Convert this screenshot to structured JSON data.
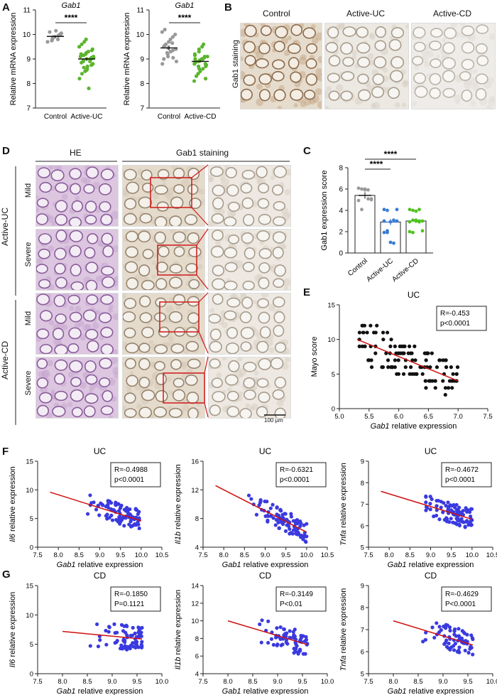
{
  "panels": {
    "A": "A",
    "B": "B",
    "C": "C",
    "D": "D",
    "E": "E",
    "F": "F",
    "G": "G"
  },
  "panelA": {
    "left": {
      "title": "Gab1",
      "ylabel": "Relative mRNA expression",
      "yticks": [
        "7",
        "8",
        "9",
        "10",
        "11"
      ],
      "categories": [
        "Control",
        "Active-UC"
      ],
      "significance": "****"
    },
    "right": {
      "title": "Gab1",
      "ylabel": "Relative mRNA expression",
      "yticks": [
        "7",
        "8",
        "9",
        "10",
        "11"
      ],
      "categories": [
        "Control",
        "Active-CD"
      ],
      "significance": "****"
    }
  },
  "panelB": {
    "ylabel": "Gab1 staining",
    "columns": [
      "Control",
      "Active-UC",
      "Active-CD"
    ],
    "scalebar": "100 μm"
  },
  "panelC": {
    "ylabel": "Gab1 expression score",
    "yticks": [
      "0",
      "2",
      "4",
      "6",
      "8"
    ],
    "categories": [
      "Control",
      "Active-UC",
      "Active-CD"
    ],
    "significance": [
      "****",
      "****"
    ]
  },
  "panelD": {
    "col_he": "HE",
    "col_gab1": "Gab1 staining",
    "group_uc": "Active-UC",
    "group_cd": "Active-CD",
    "row_mild": "Mild",
    "row_severe": "Severe",
    "scalebar": "100 μm"
  },
  "panelE": {
    "title": "UC",
    "ylabel": "Mayo score",
    "xlabel": "Gab1 relative expression",
    "stat_r": "R=-0.453",
    "stat_p": "p<0.0001"
  },
  "scatter_titles": {
    "F1": "UC",
    "F2": "UC",
    "F3": "UC",
    "G1": "CD",
    "G2": "CD",
    "G3": "CD"
  },
  "scatter_stats": {
    "F1": {
      "r": "R=-0.4988",
      "p": "p<0.0001"
    },
    "F2": {
      "r": "R=-0.6321",
      "p": "p<0.0001"
    },
    "F3": {
      "r": "R=-0.4672",
      "p": "p<0.0001"
    },
    "G1": {
      "r": "R=-0.1850",
      "p": "P=0.1121"
    },
    "G2": {
      "r": "R=-0.3149",
      "p": "P<0.01"
    },
    "G3": {
      "r": "R=-0.4629",
      "p": "P<0.0001"
    }
  },
  "scatter_ylabels": {
    "il6": "Il6",
    "il1b": "Il1b",
    "tnfa": "Tnfa",
    "suffix": " relative expression"
  },
  "scatter_xlabel": {
    "gene": "Gab1",
    "suffix": " relative expression"
  },
  "colors": {
    "control": "#999999",
    "uc": "#5bb52e",
    "cd": "#5bb52e",
    "blue": "#3a3ae0",
    "fit": "#d01010",
    "dark": "#111111",
    "uc_bar": "#3a7bd5",
    "cd_bar": "#4fc21f"
  },
  "chart_data": [
    {
      "id": "A-left",
      "type": "scatter",
      "title": "Gab1",
      "ylabel": "Relative mRNA expression",
      "ylim": [
        7,
        11
      ],
      "categories": [
        "Control",
        "Active-UC"
      ],
      "series": [
        {
          "name": "Control",
          "mean": 9.92,
          "sem": 0.05,
          "values": [
            9.7,
            9.8,
            9.85,
            9.9,
            9.95,
            10.0,
            10.05,
            10.1,
            9.75,
            9.9,
            10.15,
            9.8,
            10.0
          ]
        },
        {
          "name": "Active-UC",
          "mean": 9.0,
          "sem": 0.05,
          "values": [
            8.2,
            8.4,
            8.5,
            8.6,
            8.7,
            8.75,
            8.8,
            8.85,
            8.9,
            8.95,
            9.0,
            9.0,
            9.05,
            9.1,
            9.1,
            9.15,
            9.2,
            9.25,
            9.3,
            9.35,
            9.4,
            9.5,
            9.6,
            9.7,
            9.8,
            8.9,
            9.0,
            9.05,
            9.15,
            9.2,
            8.65,
            8.55,
            7.8
          ]
        }
      ]
    },
    {
      "id": "A-right",
      "type": "scatter",
      "title": "Gab1",
      "ylabel": "Relative mRNA expression",
      "ylim": [
        7,
        11
      ],
      "categories": [
        "Control",
        "Active-CD"
      ],
      "series": [
        {
          "name": "Control",
          "mean": 9.45,
          "sem": 0.1,
          "values": [
            8.8,
            9.0,
            9.1,
            9.2,
            9.3,
            9.35,
            9.4,
            9.5,
            9.55,
            9.6,
            9.7,
            9.8,
            9.9,
            10.0,
            10.1,
            10.2,
            9.25,
            9.45,
            9.65,
            9.05,
            8.9
          ]
        },
        {
          "name": "Active-CD",
          "mean": 8.9,
          "sem": 0.05,
          "values": [
            8.1,
            8.3,
            8.4,
            8.5,
            8.6,
            8.7,
            8.75,
            8.8,
            8.85,
            8.9,
            8.95,
            9.0,
            9.05,
            9.1,
            9.15,
            9.2,
            9.3,
            9.4,
            9.5,
            9.6,
            8.8,
            8.9,
            9.0,
            8.7,
            8.6,
            8.95,
            9.1,
            8.2
          ]
        }
      ]
    },
    {
      "id": "C",
      "type": "bar",
      "ylabel": "Gab1 expression score",
      "ylim": [
        0,
        8
      ],
      "categories": [
        "Control",
        "Active-UC",
        "Active-CD"
      ],
      "values": [
        5.4,
        2.9,
        3.0
      ],
      "sem": [
        0.3,
        0.3,
        0.2
      ],
      "points": [
        [
          6,
          6,
          6,
          5,
          5,
          5,
          4,
          6,
          6,
          5
        ],
        [
          4,
          4,
          3,
          3,
          3,
          2,
          2,
          1,
          1,
          4,
          3,
          2
        ],
        [
          4,
          4,
          4,
          4,
          3,
          3,
          3,
          3,
          3,
          2,
          2,
          2,
          3,
          3
        ]
      ]
    },
    {
      "id": "E",
      "type": "scatter",
      "title": "UC",
      "xlabel": "Gab1 relative expression",
      "ylabel": "Mayo score",
      "xlim": [
        5.0,
        7.5
      ],
      "ylim": [
        0,
        15
      ],
      "fit": [
        [
          5.3,
          10.0
        ],
        [
          7.0,
          4.0
        ]
      ]
    },
    {
      "id": "F1",
      "type": "scatter",
      "title": "UC",
      "xlim": [
        7.5,
        10.5
      ],
      "ylim": [
        0,
        15
      ],
      "fit": [
        [
          7.8,
          9.6
        ],
        [
          10.0,
          4.6
        ]
      ]
    },
    {
      "id": "F2",
      "type": "scatter",
      "title": "UC",
      "xlim": [
        7.5,
        10.5
      ],
      "ylim": [
        4,
        16
      ],
      "fit": [
        [
          7.8,
          12.6
        ],
        [
          10.0,
          6.1
        ]
      ]
    },
    {
      "id": "F3",
      "type": "scatter",
      "title": "UC",
      "xlim": [
        7.5,
        10.5
      ],
      "ylim": [
        5,
        9
      ],
      "fit": [
        [
          7.8,
          7.6
        ],
        [
          10.0,
          6.3
        ]
      ]
    },
    {
      "id": "G1",
      "type": "scatter",
      "title": "CD",
      "xlim": [
        7.5,
        10.0
      ],
      "ylim": [
        0,
        15
      ],
      "fit": [
        [
          8.0,
          7.2
        ],
        [
          9.6,
          5.9
        ]
      ]
    },
    {
      "id": "G2",
      "type": "scatter",
      "title": "CD",
      "xlim": [
        7.5,
        10.0
      ],
      "ylim": [
        4,
        14
      ],
      "fit": [
        [
          8.0,
          10.0
        ],
        [
          9.6,
          7.3
        ]
      ]
    },
    {
      "id": "G3",
      "type": "scatter",
      "title": "CD",
      "xlim": [
        7.5,
        10.0
      ],
      "ylim": [
        5,
        9
      ],
      "fit": [
        [
          8.0,
          7.4
        ],
        [
          9.6,
          6.3
        ]
      ]
    }
  ]
}
